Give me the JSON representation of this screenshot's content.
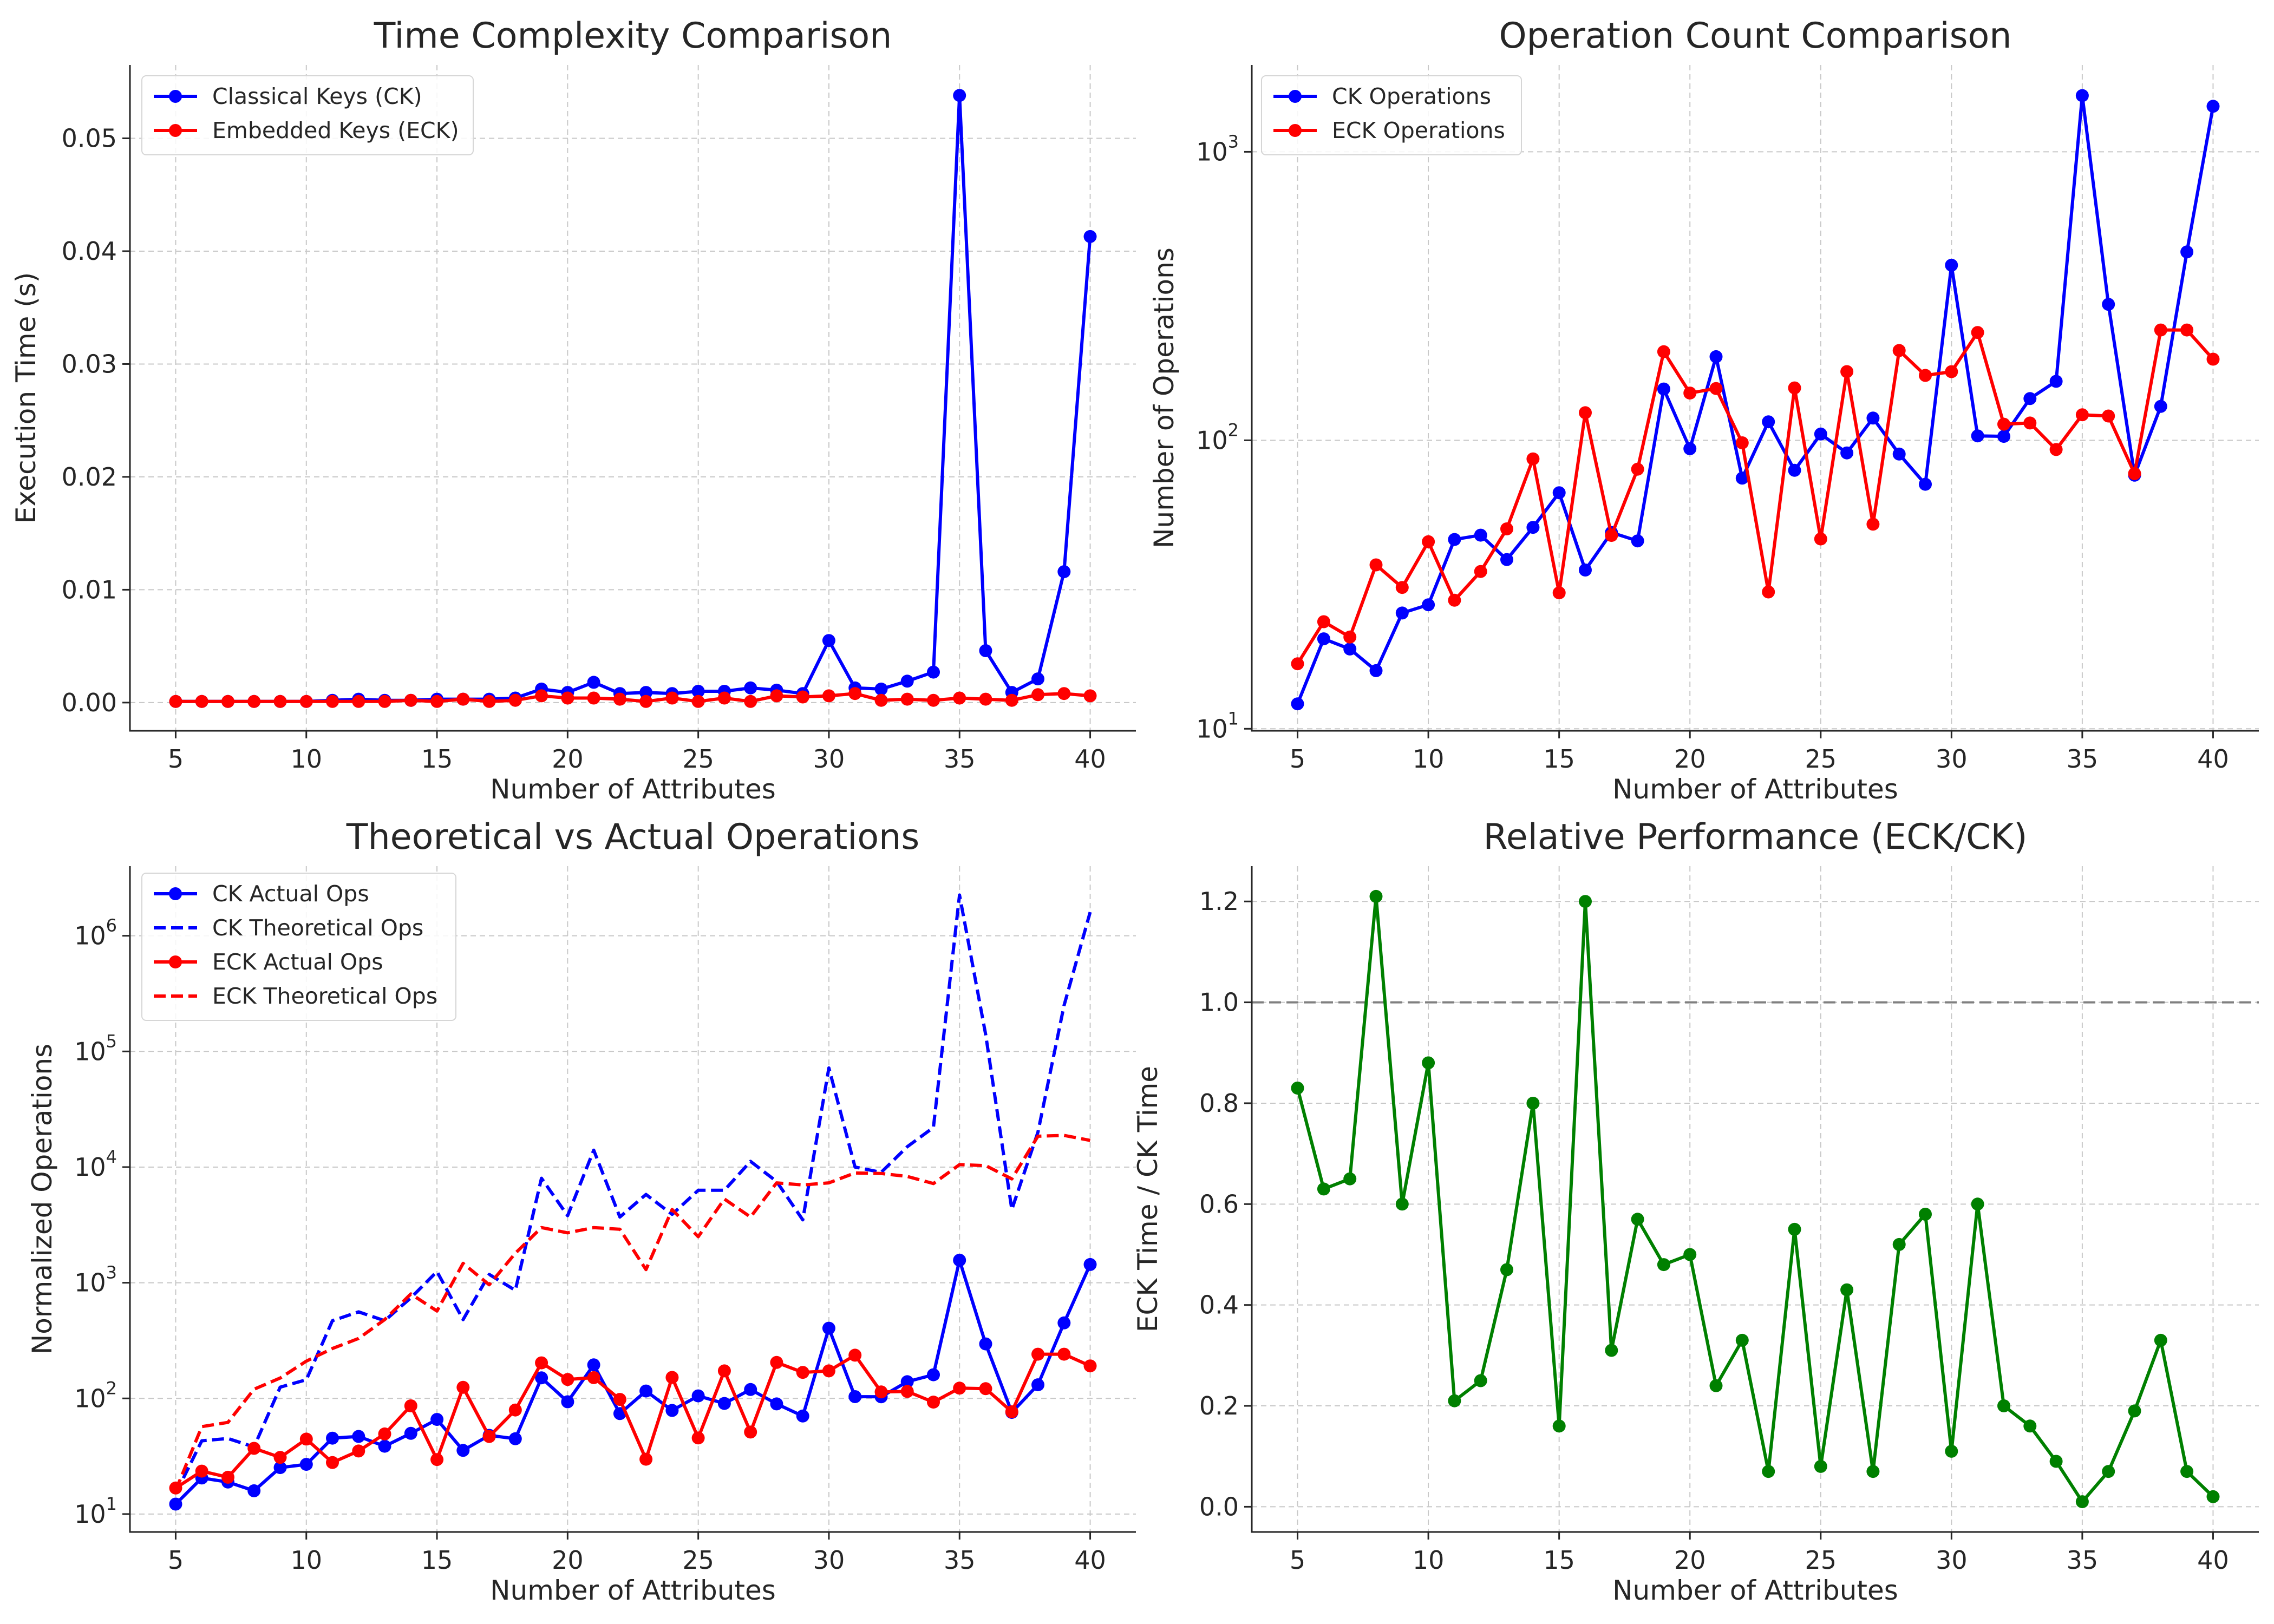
{
  "chart_data": [
    {
      "type": "line",
      "title": "Time Complexity Comparison",
      "xlabel": "Number of Attributes",
      "ylabel": "Execution Time (s)",
      "yscale": "linear",
      "xlim": [
        3.25,
        41.75
      ],
      "ylim": [
        -0.0025,
        0.0565
      ],
      "xticks": [
        5,
        10,
        15,
        20,
        25,
        30,
        35,
        40
      ],
      "xtick_labels": [
        "5",
        "10",
        "15",
        "20",
        "25",
        "30",
        "35",
        "40"
      ],
      "yticks": [
        0,
        0.01,
        0.02,
        0.03,
        0.04,
        0.05
      ],
      "ytick_labels": [
        "0.00",
        "0.01",
        "0.02",
        "0.03",
        "0.04",
        "0.05"
      ],
      "grid": true,
      "legend_position": "top-left",
      "x": [
        5,
        6,
        7,
        8,
        9,
        10,
        11,
        12,
        13,
        14,
        15,
        16,
        17,
        18,
        19,
        20,
        21,
        22,
        23,
        24,
        25,
        26,
        27,
        28,
        29,
        30,
        31,
        32,
        33,
        34,
        35,
        36,
        37,
        38,
        39,
        40
      ],
      "series": [
        {
          "name": "Classical Keys (CK)",
          "color": "#0000ff",
          "style": "solid",
          "marker": true,
          "values": [
            0.0001,
            0.0001,
            0.0001,
            0.0001,
            0.0001,
            0.0001,
            0.0002,
            0.0003,
            0.0002,
            0.0002,
            0.0003,
            0.0003,
            0.0003,
            0.0004,
            0.0012,
            0.0009,
            0.0018,
            0.0008,
            0.0009,
            0.0008,
            0.001,
            0.001,
            0.0013,
            0.0011,
            0.0008,
            0.0055,
            0.0013,
            0.0012,
            0.0019,
            0.0027,
            0.0538,
            0.0046,
            0.0009,
            0.0021,
            0.0116,
            0.0413
          ]
        },
        {
          "name": "Embedded Keys (ECK)",
          "color": "#ff0000",
          "style": "solid",
          "marker": true,
          "values": [
            0.0001,
            0.0001,
            0.0001,
            0.0001,
            0.0001,
            0.0001,
            0.0001,
            0.0001,
            0.0001,
            0.0002,
            0.0001,
            0.0003,
            0.0001,
            0.0002,
            0.0006,
            0.0004,
            0.0004,
            0.0003,
            0.0001,
            0.0004,
            0.0001,
            0.0004,
            0.0001,
            0.0006,
            0.0005,
            0.0006,
            0.0008,
            0.0002,
            0.0003,
            0.0002,
            0.0004,
            0.0003,
            0.0002,
            0.0007,
            0.0008,
            0.0006
          ]
        }
      ]
    },
    {
      "type": "line",
      "title": "Operation Count Comparison",
      "xlabel": "Number of Attributes",
      "ylabel": "Number of Operations",
      "yscale": "log",
      "xlim": [
        3.25,
        41.75
      ],
      "ylim": [
        9.84,
        2000
      ],
      "xticks": [
        5,
        10,
        15,
        20,
        25,
        30,
        35,
        40
      ],
      "xtick_labels": [
        "5",
        "10",
        "15",
        "20",
        "25",
        "30",
        "35",
        "40"
      ],
      "yticks": [
        10,
        100,
        1000
      ],
      "ytick_labels": [
        [
          "10",
          "1"
        ],
        [
          "10",
          "2"
        ],
        [
          "10",
          "3"
        ]
      ],
      "grid": true,
      "legend_position": "top-left",
      "x": [
        5,
        6,
        7,
        8,
        9,
        10,
        11,
        12,
        13,
        14,
        15,
        16,
        17,
        18,
        19,
        20,
        21,
        22,
        23,
        24,
        25,
        26,
        27,
        28,
        29,
        30,
        31,
        32,
        33,
        34,
        35,
        36,
        37,
        38,
        39,
        40
      ],
      "series": [
        {
          "name": "CK Operations",
          "color": "#0000ff",
          "style": "solid",
          "marker": true,
          "values": [
            12.2,
            20.5,
            18.9,
            15.9,
            25.2,
            26.9,
            45.3,
            46.9,
            38.6,
            49.9,
            65.8,
            35.5,
            47.9,
            44.8,
            150.6,
            93.5,
            194.9,
            73.9,
            115.9,
            78.7,
            105.1,
            90.4,
            119.4,
            89.6,
            70.4,
            404.5,
            103.6,
            103.2,
            139.5,
            160.1,
            1566.1,
            296.0,
            75.7,
            131.1,
            449.7,
            1438.6
          ]
        },
        {
          "name": "ECK Operations",
          "color": "#ff0000",
          "style": "solid",
          "marker": true,
          "values": [
            16.8,
            23.5,
            20.8,
            37.0,
            30.9,
            44.5,
            27.9,
            35.1,
            49.3,
            86.2,
            29.6,
            124.6,
            46.8,
            79.4,
            202.8,
            145.8,
            151.2,
            98.0,
            29.8,
            151.9,
            45.5,
            173.0,
            51.2,
            204.7,
            167.8,
            172.9,
            236.4,
            113.7,
            114.8,
            92.9,
            122.6,
            121.4,
            76.6,
            241.2,
            241.2,
            191.1
          ]
        }
      ]
    },
    {
      "type": "line",
      "title": "Theoretical vs Actual Operations",
      "xlabel": "Number of Attributes",
      "ylabel": "Normalized Operations",
      "yscale": "log",
      "xlim": [
        3.25,
        41.75
      ],
      "ylim": [
        7.0,
        4000000
      ],
      "xticks": [
        5,
        10,
        15,
        20,
        25,
        30,
        35,
        40
      ],
      "xtick_labels": [
        "5",
        "10",
        "15",
        "20",
        "25",
        "30",
        "35",
        "40"
      ],
      "yticks": [
        10,
        100,
        1000,
        10000,
        100000,
        1000000
      ],
      "ytick_labels": [
        [
          "10",
          "1"
        ],
        [
          "10",
          "2"
        ],
        [
          "10",
          "3"
        ],
        [
          "10",
          "4"
        ],
        [
          "10",
          "5"
        ],
        [
          "10",
          "6"
        ]
      ],
      "grid": true,
      "legend_position": "top-left",
      "x": [
        5,
        6,
        7,
        8,
        9,
        10,
        11,
        12,
        13,
        14,
        15,
        16,
        17,
        18,
        19,
        20,
        21,
        22,
        23,
        24,
        25,
        26,
        27,
        28,
        29,
        30,
        31,
        32,
        33,
        34,
        35,
        36,
        37,
        38,
        39,
        40
      ],
      "series": [
        {
          "name": "CK Actual Ops",
          "color": "#0000ff",
          "style": "solid",
          "marker": true,
          "values": [
            12.2,
            20.5,
            18.9,
            15.9,
            25.2,
            26.9,
            45.3,
            46.9,
            38.6,
            49.9,
            65.8,
            35.5,
            47.9,
            44.8,
            150.6,
            93.5,
            194.9,
            73.9,
            115.9,
            78.7,
            105.1,
            90.4,
            119.4,
            89.6,
            70.4,
            404.5,
            103.6,
            103.2,
            139.5,
            160.1,
            1566.1,
            296.0,
            75.7,
            131.1,
            449.7,
            1438.6
          ]
        },
        {
          "name": "CK Theoretical Ops",
          "color": "#0000ff",
          "style": "dashed",
          "marker": false,
          "values": [
            15,
            43,
            45,
            38,
            125,
            145,
            470,
            560,
            470,
            740,
            1250,
            480,
            1180,
            860,
            8000,
            3800,
            14000,
            3700,
            5800,
            3900,
            6300,
            6300,
            11200,
            7500,
            3500,
            72000,
            10000,
            9000,
            15000,
            22000,
            2250000,
            140000,
            4300,
            20000,
            250000,
            1600000
          ]
        },
        {
          "name": "ECK Actual Ops",
          "color": "#ff0000",
          "style": "solid",
          "marker": true,
          "values": [
            16.8,
            23.5,
            20.8,
            37.0,
            30.9,
            44.5,
            27.9,
            35.1,
            49.3,
            86.2,
            29.6,
            124.6,
            46.8,
            79.4,
            202.8,
            145.8,
            151.2,
            98.0,
            29.8,
            151.9,
            45.5,
            173.0,
            51.2,
            204.7,
            167.8,
            172.9,
            236.4,
            113.7,
            114.8,
            92.9,
            122.6,
            121.4,
            76.6,
            241.2,
            241.2,
            191.1
          ]
        },
        {
          "name": "ECK Theoretical Ops",
          "color": "#ff0000",
          "style": "dashed",
          "marker": false,
          "values": [
            16,
            57,
            62,
            120,
            150,
            210,
            270,
            330,
            480,
            800,
            570,
            1470,
            960,
            1800,
            3000,
            2700,
            3000,
            2900,
            1300,
            4300,
            2500,
            5300,
            3700,
            7300,
            7000,
            7300,
            8900,
            8800,
            8300,
            7200,
            10500,
            10300,
            7900,
            18500,
            18800,
            17000
          ]
        }
      ]
    },
    {
      "type": "line",
      "title": "Relative Performance (ECK/CK)",
      "xlabel": "Number of Attributes",
      "ylabel": "ECK Time / CK Time",
      "yscale": "linear",
      "xlim": [
        3.25,
        41.75
      ],
      "ylim": [
        -0.05,
        1.27
      ],
      "xticks": [
        5,
        10,
        15,
        20,
        25,
        30,
        35,
        40
      ],
      "xtick_labels": [
        "5",
        "10",
        "15",
        "20",
        "25",
        "30",
        "35",
        "40"
      ],
      "yticks": [
        0,
        0.2,
        0.4,
        0.6,
        0.8,
        1.0,
        1.2
      ],
      "ytick_labels": [
        "0.0",
        "0.2",
        "0.4",
        "0.6",
        "0.8",
        "1.0",
        "1.2"
      ],
      "grid": true,
      "reference_line": {
        "y": 1.0,
        "color": "#808080",
        "style": "dashed"
      },
      "x": [
        5,
        6,
        7,
        8,
        9,
        10,
        11,
        12,
        13,
        14,
        15,
        16,
        17,
        18,
        19,
        20,
        21,
        22,
        23,
        24,
        25,
        26,
        27,
        28,
        29,
        30,
        31,
        32,
        33,
        34,
        35,
        36,
        37,
        38,
        39,
        40
      ],
      "series": [
        {
          "color": "#008000",
          "style": "solid",
          "marker": true,
          "values": [
            0.83,
            0.63,
            0.65,
            1.21,
            0.6,
            0.88,
            0.21,
            0.25,
            0.47,
            0.8,
            0.16,
            1.2,
            0.31,
            0.57,
            0.48,
            0.5,
            0.24,
            0.33,
            0.07,
            0.55,
            0.08,
            0.43,
            0.07,
            0.52,
            0.58,
            0.11,
            0.6,
            0.2,
            0.16,
            0.09,
            0.01,
            0.07,
            0.19,
            0.33,
            0.07,
            0.02
          ]
        }
      ]
    }
  ]
}
